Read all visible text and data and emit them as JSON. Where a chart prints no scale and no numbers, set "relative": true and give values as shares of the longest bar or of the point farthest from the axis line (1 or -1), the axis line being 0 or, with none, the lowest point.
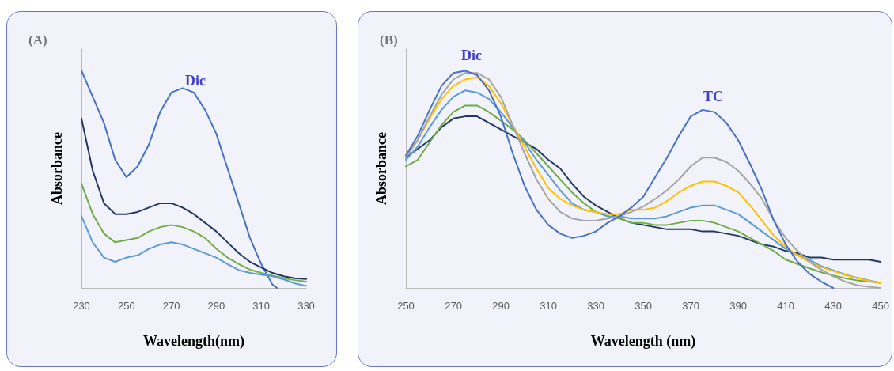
{
  "chart_data": [
    {
      "type": "line",
      "title": "(A)",
      "xlabel": "Wavelength(nm)",
      "ylabel": "Absorbance",
      "relative": true,
      "xlim": [
        230,
        330
      ],
      "xticks": [
        230,
        250,
        270,
        290,
        310,
        330
      ],
      "grid": false,
      "marker": "none",
      "line_style": "solid",
      "annotations": [
        "Dic"
      ],
      "series": [
        {
          "color": "#4472c4",
          "x": [
            230,
            240,
            245,
            250,
            255,
            260,
            265,
            270,
            275,
            280,
            285,
            290,
            295,
            300,
            305,
            310,
            315,
            317
          ],
          "values": [
            1.0,
            0.76,
            0.59,
            0.51,
            0.56,
            0.66,
            0.81,
            0.9,
            0.92,
            0.9,
            0.82,
            0.71,
            0.55,
            0.39,
            0.23,
            0.11,
            0.015,
            0
          ]
        },
        {
          "color": "#1f3864",
          "x": [
            230,
            235,
            240,
            245,
            250,
            255,
            260,
            265,
            270,
            275,
            280,
            285,
            290,
            295,
            300,
            305,
            310,
            315,
            320,
            325,
            330
          ],
          "values": [
            0.78,
            0.54,
            0.39,
            0.34,
            0.34,
            0.35,
            0.37,
            0.39,
            0.39,
            0.37,
            0.34,
            0.3,
            0.26,
            0.21,
            0.16,
            0.12,
            0.094,
            0.069,
            0.054,
            0.045,
            0.041
          ]
        },
        {
          "color": "#70ad47",
          "x": [
            230,
            235,
            240,
            245,
            250,
            255,
            260,
            265,
            270,
            275,
            280,
            285,
            290,
            295,
            300,
            305,
            310,
            315,
            320,
            325,
            330
          ],
          "values": [
            0.48,
            0.34,
            0.25,
            0.21,
            0.22,
            0.23,
            0.26,
            0.28,
            0.29,
            0.28,
            0.26,
            0.23,
            0.18,
            0.14,
            0.11,
            0.084,
            0.069,
            0.057,
            0.045,
            0.036,
            0.029
          ]
        },
        {
          "color": "#5b9bd5",
          "x": [
            230,
            235,
            240,
            245,
            250,
            255,
            260,
            265,
            270,
            275,
            280,
            285,
            290,
            295,
            300,
            305,
            310,
            315,
            320,
            325,
            330
          ],
          "values": [
            0.33,
            0.21,
            0.14,
            0.12,
            0.14,
            0.15,
            0.18,
            0.2,
            0.21,
            0.2,
            0.18,
            0.16,
            0.14,
            0.11,
            0.082,
            0.069,
            0.061,
            0.054,
            0.039,
            0.021,
            0.009
          ]
        }
      ]
    },
    {
      "type": "line",
      "title": "(B)",
      "xlabel": "Wavelength (nm)",
      "ylabel": "Absorbance",
      "relative": true,
      "xlim": [
        250,
        450
      ],
      "xticks": [
        250,
        270,
        290,
        310,
        330,
        350,
        370,
        390,
        410,
        430,
        450
      ],
      "grid": false,
      "marker": "none",
      "line_style": "solid",
      "annotations": [
        "Dic",
        "TC"
      ],
      "series": [
        {
          "color": "#1f3864",
          "x": [
            250,
            255,
            260,
            265,
            270,
            275,
            280,
            285,
            290,
            295,
            300,
            305,
            310,
            315,
            320,
            325,
            330,
            335,
            340,
            345,
            350,
            355,
            360,
            365,
            370,
            375,
            380,
            385,
            390,
            395,
            400,
            405,
            410,
            415,
            420,
            425,
            430,
            435,
            440,
            445,
            450
          ],
          "values": [
            0.6,
            0.64,
            0.68,
            0.74,
            0.78,
            0.79,
            0.79,
            0.76,
            0.73,
            0.7,
            0.67,
            0.64,
            0.59,
            0.55,
            0.48,
            0.42,
            0.38,
            0.35,
            0.32,
            0.3,
            0.29,
            0.28,
            0.27,
            0.27,
            0.27,
            0.26,
            0.26,
            0.25,
            0.24,
            0.22,
            0.2,
            0.19,
            0.17,
            0.16,
            0.14,
            0.14,
            0.13,
            0.13,
            0.13,
            0.13,
            0.12
          ]
        },
        {
          "color": "#70ad47",
          "x": [
            250,
            255,
            260,
            265,
            270,
            275,
            280,
            285,
            290,
            295,
            300,
            305,
            310,
            315,
            320,
            325,
            330,
            335,
            340,
            345,
            350,
            355,
            360,
            365,
            370,
            375,
            380,
            385,
            390,
            395,
            400,
            405,
            410,
            415,
            420,
            425,
            430,
            435,
            440,
            445,
            450
          ],
          "values": [
            0.56,
            0.59,
            0.67,
            0.75,
            0.81,
            0.84,
            0.84,
            0.81,
            0.77,
            0.73,
            0.68,
            0.62,
            0.56,
            0.5,
            0.44,
            0.39,
            0.35,
            0.33,
            0.32,
            0.3,
            0.3,
            0.29,
            0.29,
            0.3,
            0.31,
            0.31,
            0.3,
            0.28,
            0.26,
            0.23,
            0.2,
            0.17,
            0.13,
            0.11,
            0.09,
            0.072,
            0.057,
            0.045,
            0.035,
            0.029,
            0.025
          ]
        },
        {
          "color": "#5b9bd5",
          "x": [
            250,
            255,
            260,
            265,
            270,
            275,
            280,
            285,
            290,
            295,
            300,
            305,
            310,
            315,
            320,
            325,
            330,
            335,
            340,
            345,
            350,
            355,
            360,
            365,
            370,
            375,
            380,
            385,
            390,
            395,
            400,
            405,
            410,
            415,
            420,
            425,
            430,
            435,
            440,
            445,
            450
          ],
          "values": [
            0.59,
            0.65,
            0.74,
            0.82,
            0.88,
            0.91,
            0.9,
            0.87,
            0.81,
            0.74,
            0.67,
            0.59,
            0.52,
            0.45,
            0.39,
            0.36,
            0.35,
            0.33,
            0.33,
            0.32,
            0.32,
            0.32,
            0.33,
            0.35,
            0.37,
            0.38,
            0.38,
            0.36,
            0.34,
            0.3,
            0.26,
            0.22,
            0.18,
            0.15,
            0.13,
            0.1,
            0.081,
            0.062,
            0.047,
            0.035,
            0.023
          ]
        },
        {
          "color": "#ffc000",
          "x": [
            250,
            255,
            260,
            265,
            270,
            275,
            280,
            285,
            290,
            295,
            300,
            305,
            310,
            315,
            320,
            325,
            330,
            335,
            340,
            345,
            350,
            355,
            360,
            365,
            370,
            375,
            380,
            385,
            390,
            395,
            400,
            405,
            410,
            415,
            420,
            425,
            430,
            435,
            440,
            445,
            450
          ],
          "values": [
            0.61,
            0.68,
            0.78,
            0.87,
            0.93,
            0.96,
            0.97,
            0.93,
            0.85,
            0.75,
            0.65,
            0.55,
            0.46,
            0.41,
            0.38,
            0.36,
            0.35,
            0.34,
            0.34,
            0.36,
            0.36,
            0.37,
            0.4,
            0.44,
            0.47,
            0.49,
            0.49,
            0.47,
            0.44,
            0.38,
            0.31,
            0.24,
            0.19,
            0.15,
            0.12,
            0.096,
            0.078,
            0.059,
            0.045,
            0.033,
            0.021
          ]
        },
        {
          "color": "#a5a5a5",
          "x": [
            250,
            255,
            260,
            265,
            270,
            275,
            280,
            285,
            290,
            295,
            300,
            305,
            310,
            315,
            320,
            325,
            330,
            335,
            340,
            345,
            350,
            355,
            360,
            365,
            370,
            375,
            380,
            385,
            390,
            395,
            400,
            405,
            410,
            415,
            420,
            425,
            430,
            435,
            440,
            445,
            450
          ],
          "values": [
            0.6,
            0.68,
            0.79,
            0.89,
            0.96,
            0.99,
            0.99,
            0.96,
            0.88,
            0.75,
            0.62,
            0.5,
            0.41,
            0.35,
            0.32,
            0.31,
            0.31,
            0.32,
            0.33,
            0.35,
            0.375,
            0.41,
            0.45,
            0.5,
            0.56,
            0.6,
            0.6,
            0.58,
            0.54,
            0.48,
            0.41,
            0.31,
            0.23,
            0.17,
            0.12,
            0.084,
            0.053,
            0.029,
            0.013,
            0.005,
            0
          ]
        },
        {
          "color": "#4472c4",
          "x": [
            250,
            255,
            260,
            265,
            270,
            275,
            280,
            285,
            290,
            295,
            300,
            305,
            310,
            315,
            320,
            325,
            330,
            335,
            340,
            345,
            350,
            355,
            360,
            365,
            370,
            375,
            380,
            385,
            390,
            395,
            400,
            405,
            410,
            415,
            420,
            425,
            430
          ],
          "values": [
            0.61,
            0.7,
            0.82,
            0.93,
            0.99,
            1.0,
            0.98,
            0.91,
            0.79,
            0.62,
            0.47,
            0.36,
            0.29,
            0.25,
            0.23,
            0.24,
            0.26,
            0.3,
            0.33,
            0.37,
            0.42,
            0.51,
            0.6,
            0.7,
            0.79,
            0.82,
            0.81,
            0.76,
            0.68,
            0.57,
            0.45,
            0.31,
            0.2,
            0.12,
            0.065,
            0.029,
            0
          ]
        }
      ]
    }
  ]
}
